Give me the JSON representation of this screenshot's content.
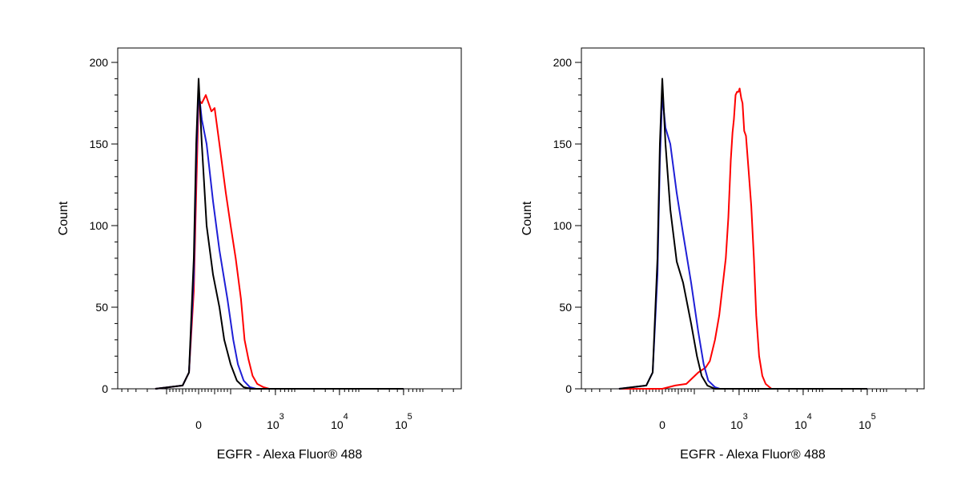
{
  "colors": {
    "red": "#ff0000",
    "blue": "#1f1fd6",
    "black": "#000000"
  },
  "chart_data": [
    {
      "type": "line",
      "xscale": "biexponential",
      "xlabel": "EGFR - Alexa Fluor® 488",
      "ylabel": "Count",
      "ylim": [
        0,
        200
      ],
      "y_ticks": [
        0,
        50,
        100,
        150,
        200
      ],
      "x_tick_labels": [
        {
          "value": 0,
          "base": "0",
          "exp": ""
        },
        {
          "value": 1000,
          "base": "10",
          "exp": "3"
        },
        {
          "value": 10000,
          "base": "10",
          "exp": "4"
        },
        {
          "value": 100000,
          "base": "10",
          "exp": "5"
        }
      ],
      "series": [
        {
          "color": "#ff0000",
          "points": [
            [
              -300,
              0
            ],
            [
              -100,
              2
            ],
            [
              -60,
              10
            ],
            [
              -30,
              60
            ],
            [
              -15,
              120
            ],
            [
              0,
              177
            ],
            [
              20,
              175
            ],
            [
              45,
              180
            ],
            [
              80,
              170
            ],
            [
              100,
              172
            ],
            [
              130,
              150
            ],
            [
              170,
              120
            ],
            [
              200,
              100
            ],
            [
              240,
              80
            ],
            [
              290,
              55
            ],
            [
              330,
              30
            ],
            [
              380,
              18
            ],
            [
              440,
              8
            ],
            [
              520,
              3
            ],
            [
              650,
              1
            ],
            [
              800,
              0
            ],
            [
              100000,
              0
            ]
          ]
        },
        {
          "color": "#1f1fd6",
          "points": [
            [
              -300,
              0
            ],
            [
              -100,
              2
            ],
            [
              -60,
              10
            ],
            [
              -30,
              70
            ],
            [
              -15,
              140
            ],
            [
              0,
              183
            ],
            [
              20,
              165
            ],
            [
              50,
              150
            ],
            [
              90,
              115
            ],
            [
              130,
              85
            ],
            [
              180,
              55
            ],
            [
              220,
              30
            ],
            [
              260,
              15
            ],
            [
              320,
              5
            ],
            [
              400,
              1
            ],
            [
              500,
              0
            ],
            [
              100000,
              0
            ]
          ]
        },
        {
          "color": "#000000",
          "points": [
            [
              -300,
              0
            ],
            [
              -100,
              2
            ],
            [
              -60,
              10
            ],
            [
              -30,
              80
            ],
            [
              -15,
              150
            ],
            [
              0,
              190
            ],
            [
              20,
              150
            ],
            [
              50,
              100
            ],
            [
              90,
              70
            ],
            [
              130,
              50
            ],
            [
              160,
              30
            ],
            [
              200,
              15
            ],
            [
              250,
              5
            ],
            [
              320,
              1
            ],
            [
              420,
              0
            ],
            [
              100000,
              0
            ]
          ]
        }
      ]
    },
    {
      "type": "line",
      "xscale": "biexponential",
      "xlabel": "EGFR - Alexa Fluor® 488",
      "ylabel": "Count",
      "ylim": [
        0,
        200
      ],
      "y_ticks": [
        0,
        50,
        100,
        150,
        200
      ],
      "x_tick_labels": [
        {
          "value": 0,
          "base": "0",
          "exp": ""
        },
        {
          "value": 1000,
          "base": "10",
          "exp": "3"
        },
        {
          "value": 10000,
          "base": "10",
          "exp": "4"
        },
        {
          "value": 100000,
          "base": "10",
          "exp": "5"
        }
      ],
      "series": [
        {
          "color": "#ff0000",
          "points": [
            [
              -300,
              0
            ],
            [
              -50,
              0
            ],
            [
              0,
              0
            ],
            [
              80,
              2
            ],
            [
              150,
              3
            ],
            [
              230,
              10
            ],
            [
              300,
              13
            ],
            [
              350,
              17
            ],
            [
              420,
              30
            ],
            [
              490,
              45
            ],
            [
              560,
              65
            ],
            [
              620,
              80
            ],
            [
              680,
              105
            ],
            [
              740,
              140
            ],
            [
              790,
              157
            ],
            [
              830,
              165
            ],
            [
              880,
              180
            ],
            [
              930,
              182
            ],
            [
              980,
              182
            ],
            [
              1020,
              184
            ],
            [
              1080,
              178
            ],
            [
              1130,
              175
            ],
            [
              1200,
              158
            ],
            [
              1280,
              155
            ],
            [
              1400,
              135
            ],
            [
              1550,
              112
            ],
            [
              1700,
              80
            ],
            [
              1850,
              45
            ],
            [
              2050,
              20
            ],
            [
              2300,
              8
            ],
            [
              2600,
              3
            ],
            [
              3200,
              0
            ],
            [
              100000,
              0
            ]
          ]
        },
        {
          "color": "#1f1fd6",
          "points": [
            [
              -300,
              0
            ],
            [
              -100,
              2
            ],
            [
              -60,
              10
            ],
            [
              -30,
              70
            ],
            [
              -15,
              140
            ],
            [
              0,
              180
            ],
            [
              20,
              160
            ],
            [
              50,
              150
            ],
            [
              90,
              120
            ],
            [
              130,
              95
            ],
            [
              180,
              65
            ],
            [
              230,
              35
            ],
            [
              280,
              15
            ],
            [
              330,
              5
            ],
            [
              420,
              1
            ],
            [
              500,
              0
            ],
            [
              100000,
              0
            ]
          ]
        },
        {
          "color": "#000000",
          "points": [
            [
              -300,
              0
            ],
            [
              -100,
              2
            ],
            [
              -60,
              10
            ],
            [
              -30,
              80
            ],
            [
              -15,
              150
            ],
            [
              0,
              190
            ],
            [
              20,
              150
            ],
            [
              50,
              110
            ],
            [
              90,
              78
            ],
            [
              130,
              65
            ],
            [
              180,
              40
            ],
            [
              220,
              20
            ],
            [
              260,
              8
            ],
            [
              320,
              2
            ],
            [
              420,
              0
            ],
            [
              100000,
              0
            ]
          ]
        }
      ]
    }
  ]
}
